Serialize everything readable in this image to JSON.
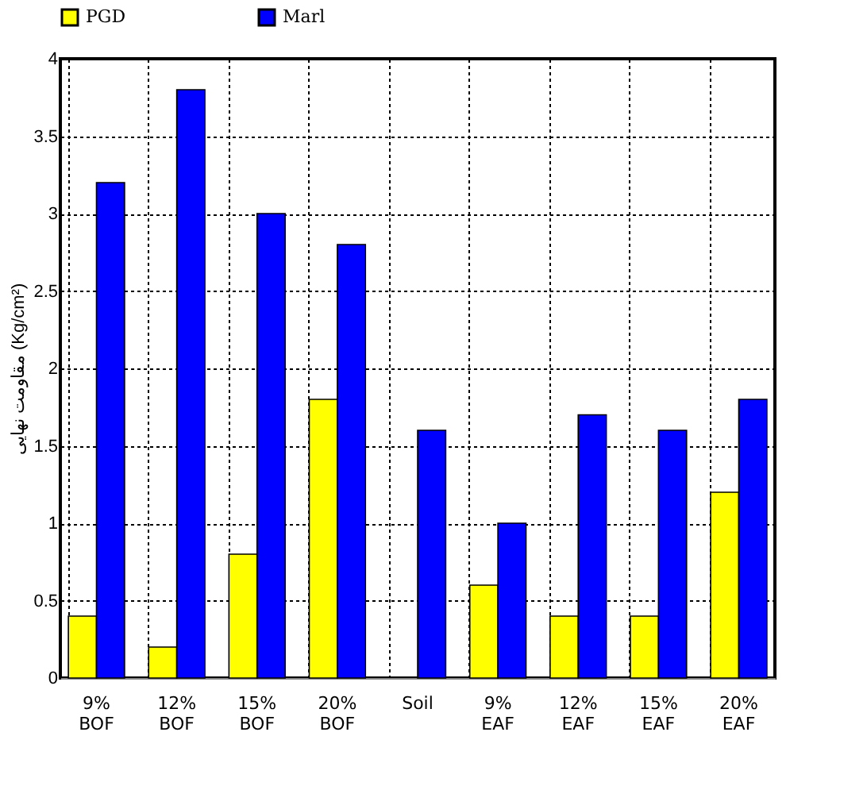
{
  "chart_data": {
    "type": "bar",
    "ylabel": "مقاومت نهایی (Kg/cm²)",
    "categories": [
      "9% BOF",
      "12% BOF",
      "15% BOF",
      "20% BOF",
      "Soil",
      "9% EAF",
      "12% EAF",
      "15% EAF",
      "20% EAF"
    ],
    "series": [
      {
        "name": "PGD",
        "color": "#ffff00",
        "values": [
          0.4,
          0.2,
          0.8,
          1.8,
          null,
          0.6,
          0.4,
          0.4,
          1.2
        ]
      },
      {
        "name": "Marl",
        "color": "#0000ff",
        "values": [
          3.2,
          3.8,
          3.0,
          2.8,
          1.6,
          1.0,
          1.7,
          1.6,
          1.8
        ]
      }
    ],
    "ylim": [
      0,
      4
    ],
    "yticks": [
      0,
      0.5,
      1,
      1.5,
      2,
      2.5,
      3,
      3.5,
      4
    ],
    "grid": true,
    "legend": "top"
  }
}
